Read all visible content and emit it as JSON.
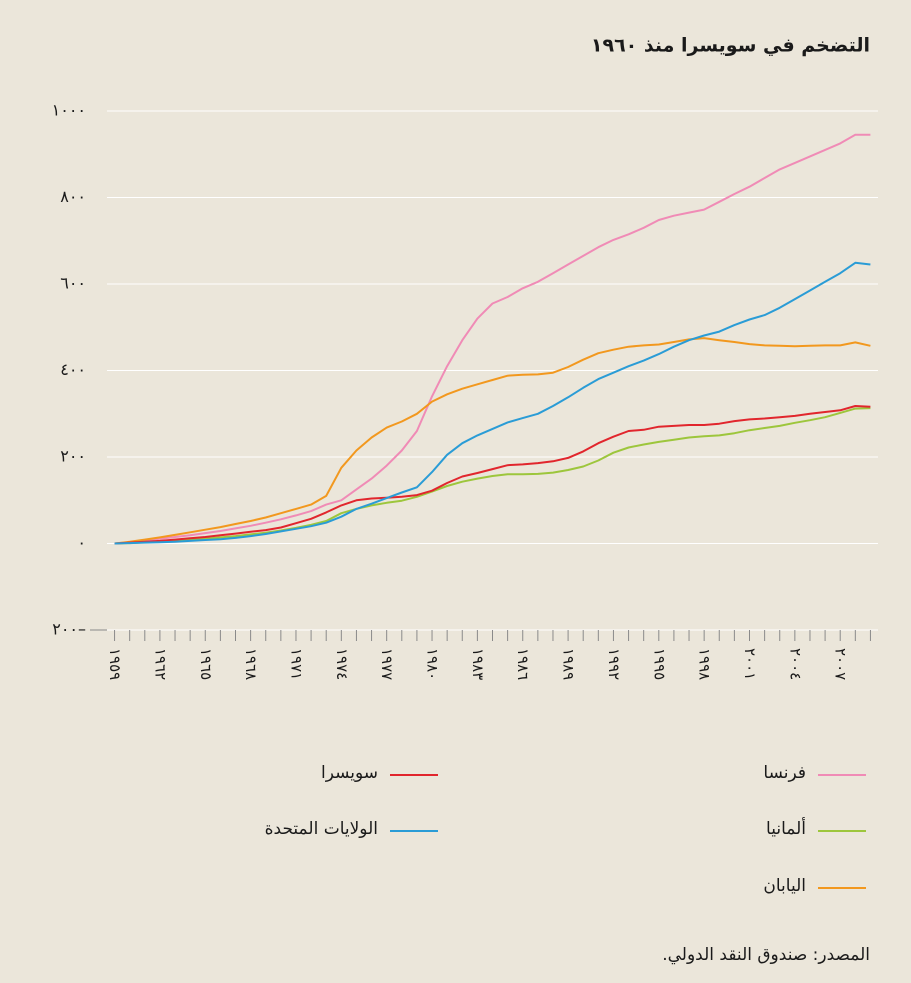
{
  "chart_data": {
    "type": "line",
    "title": "التضخم في سويسرا منذ ١٩٦٠",
    "source": "المصدر: صندوق النقد الدولي.",
    "x": [
      1959,
      1960,
      1961,
      1962,
      1963,
      1964,
      1965,
      1966,
      1967,
      1968,
      1969,
      1970,
      1971,
      1972,
      1973,
      1974,
      1975,
      1976,
      1977,
      1978,
      1979,
      1980,
      1981,
      1982,
      1983,
      1984,
      1985,
      1986,
      1987,
      1988,
      1989,
      1990,
      1991,
      1992,
      1993,
      1994,
      1995,
      1996,
      1997,
      1998,
      1999,
      2000,
      2001,
      2002,
      2003,
      2004,
      2005,
      2006,
      2007,
      2008,
      2009
    ],
    "xlim": [
      1958.5,
      2009.5
    ],
    "xticks": [
      {
        "value": 1959,
        "label": "١٩٥٩"
      },
      {
        "value": 1962,
        "label": "١٩٦٢"
      },
      {
        "value": 1965,
        "label": "١٩٦٥"
      },
      {
        "value": 1968,
        "label": "١٩٦٨"
      },
      {
        "value": 1971,
        "label": "١٩٧١"
      },
      {
        "value": 1974,
        "label": "١٩٧٤"
      },
      {
        "value": 1977,
        "label": "١٩٧٧"
      },
      {
        "value": 1980,
        "label": "١٩٨٠"
      },
      {
        "value": 1983,
        "label": "١٩٨٣"
      },
      {
        "value": 1986,
        "label": "١٩٨٦"
      },
      {
        "value": 1989,
        "label": "١٩٨٩"
      },
      {
        "value": 1992,
        "label": "١٩٩٢"
      },
      {
        "value": 1995,
        "label": "١٩٩٥"
      },
      {
        "value": 1998,
        "label": "١٩٩٨"
      },
      {
        "value": 2001,
        "label": "٢٠٠١"
      },
      {
        "value": 2004,
        "label": "٢٠٠٤"
      },
      {
        "value": 2007,
        "label": "٢٠٠٧"
      }
    ],
    "xminorticks": [
      1960,
      1961,
      1963,
      1964,
      1966,
      1967,
      1969,
      1970,
      1972,
      1973,
      1975,
      1976,
      1978,
      1979,
      1981,
      1982,
      1984,
      1985,
      1987,
      1988,
      1990,
      1991,
      1993,
      1994,
      1996,
      1997,
      1999,
      2000,
      2002,
      2003,
      2005,
      2006,
      2008,
      2009
    ],
    "ylim": [
      -200,
      1000
    ],
    "yticks": [
      {
        "value": 1000,
        "label": "١٠٠٠"
      },
      {
        "value": 800,
        "label": "٨٠٠"
      },
      {
        "value": 600,
        "label": "٦٠٠"
      },
      {
        "value": 400,
        "label": "٤٠٠"
      },
      {
        "value": 200,
        "label": "٢٠٠"
      },
      {
        "value": 0,
        "label": "٠"
      },
      {
        "value": -200,
        "label": "٢٠٠–"
      }
    ],
    "grid": true,
    "series": [
      {
        "name": "فرنسا",
        "color": "#f08bb6",
        "values": [
          0,
          3,
          7,
          11,
          15,
          19,
          24,
          29,
          35,
          41,
          48,
          56,
          65,
          75,
          90,
          100,
          125,
          150,
          180,
          215,
          260,
          340,
          410,
          470,
          520,
          555,
          570,
          590,
          605,
          625,
          645,
          665,
          685,
          702,
          715,
          730,
          748,
          758,
          765,
          772,
          790,
          808,
          825,
          845,
          865,
          880,
          895,
          910,
          925,
          945,
          945
        ]
      },
      {
        "name": "ألمانيا",
        "color": "#9dc63c",
        "values": [
          0,
          1,
          3,
          5,
          7,
          9,
          11,
          14,
          17,
          21,
          25,
          30,
          36,
          43,
          52,
          70,
          80,
          88,
          94,
          99,
          108,
          120,
          133,
          143,
          150,
          156,
          160,
          160,
          161,
          164,
          170,
          178,
          192,
          210,
          222,
          229,
          235,
          240,
          245,
          248,
          250,
          255,
          262,
          267,
          272,
          279,
          285,
          292,
          302,
          312,
          313
        ]
      },
      {
        "name": "اليابان",
        "color": "#f2981e",
        "values": [
          0,
          4,
          9,
          14,
          20,
          26,
          32,
          38,
          45,
          52,
          60,
          70,
          80,
          90,
          110,
          175,
          215,
          245,
          268,
          282,
          300,
          328,
          345,
          358,
          368,
          378,
          388,
          390,
          391,
          395,
          408,
          425,
          440,
          448,
          455,
          458,
          460,
          466,
          472,
          475,
          470,
          466,
          461,
          458,
          457,
          456,
          457,
          458,
          458,
          465,
          457
        ]
      },
      {
        "name": "سويسرا",
        "color": "#e1262d",
        "values": [
          0,
          2,
          4,
          6,
          9,
          12,
          15,
          19,
          23,
          27,
          31,
          37,
          47,
          57,
          72,
          88,
          100,
          104,
          106,
          108,
          112,
          122,
          140,
          155,
          163,
          172,
          181,
          183,
          186,
          190,
          198,
          213,
          232,
          247,
          260,
          263,
          270,
          272,
          274,
          274,
          277,
          283,
          287,
          289,
          292,
          295,
          300,
          304,
          308,
          318,
          316
        ]
      },
      {
        "name": "الولايات المتحدة",
        "color": "#2a9cd6",
        "values": [
          0,
          1,
          2,
          3,
          4,
          6,
          8,
          10,
          13,
          17,
          22,
          28,
          34,
          40,
          48,
          62,
          80,
          92,
          105,
          118,
          130,
          165,
          205,
          232,
          250,
          265,
          280,
          290,
          300,
          318,
          338,
          360,
          380,
          395,
          410,
          423,
          438,
          455,
          470,
          481,
          490,
          505,
          518,
          528,
          545,
          565,
          585,
          605,
          625,
          649,
          645
        ]
      }
    ]
  }
}
